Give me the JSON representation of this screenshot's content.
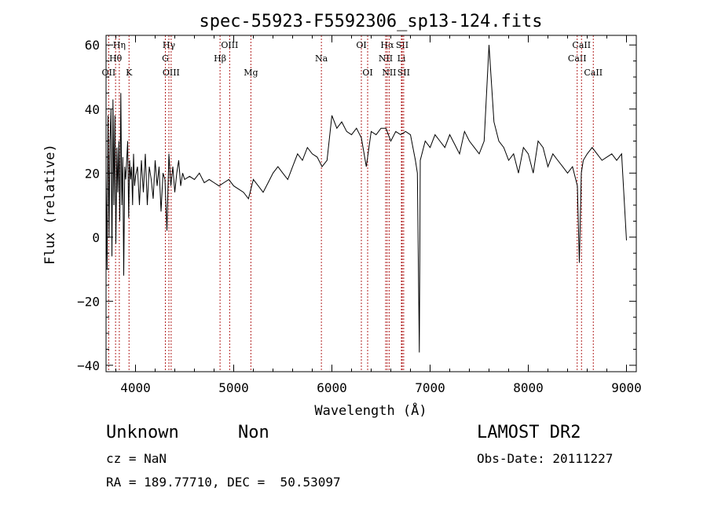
{
  "chart_data": {
    "type": "line",
    "title": "spec-55923-F5592306_sp13-124.fits",
    "xlabel": "Wavelength (Å)",
    "ylabel": "Flux (relative)",
    "xlim": [
      3700,
      9100
    ],
    "ylim": [
      -42,
      63
    ],
    "x_ticks": [
      4000,
      5000,
      6000,
      7000,
      8000,
      9000
    ],
    "y_ticks": [
      -40,
      -20,
      0,
      20,
      40,
      60
    ],
    "grid": false,
    "line_color": "#000000",
    "marker_color": "#b22222",
    "series": [
      {
        "x": [
          3700,
          3710,
          3720,
          3730,
          3740,
          3750,
          3760,
          3770,
          3780,
          3790,
          3800,
          3810,
          3820,
          3830,
          3840,
          3850,
          3860,
          3870,
          3880,
          3890,
          3900,
          3910,
          3920,
          3930,
          3940,
          3950,
          3960,
          3970,
          3980,
          3990,
          4000,
          4020,
          4040,
          4060,
          4080,
          4100,
          4120,
          4140,
          4160,
          4180,
          4200,
          4220,
          4240,
          4260,
          4280,
          4300,
          4320,
          4340,
          4360,
          4380,
          4400,
          4420,
          4440,
          4460,
          4480,
          4500,
          4550,
          4600,
          4650,
          4700,
          4750,
          4800,
          4850,
          4900,
          4950,
          5000,
          5050,
          5100,
          5150,
          5200,
          5250,
          5300,
          5350,
          5400,
          5450,
          5500,
          5550,
          5600,
          5650,
          5700,
          5750,
          5800,
          5850,
          5900,
          5950,
          6000,
          6050,
          6100,
          6150,
          6200,
          6250,
          6300,
          6350,
          6400,
          6450,
          6500,
          6550,
          6600,
          6650,
          6700,
          6750,
          6800,
          6850,
          6870,
          6890,
          6900,
          6950,
          7000,
          7050,
          7100,
          7150,
          7200,
          7250,
          7300,
          7350,
          7400,
          7450,
          7500,
          7550,
          7600,
          7650,
          7700,
          7750,
          7800,
          7850,
          7900,
          7950,
          8000,
          8050,
          8100,
          8150,
          8200,
          8250,
          8300,
          8350,
          8400,
          8450,
          8500,
          8520,
          8540,
          8560,
          8600,
          8650,
          8700,
          8750,
          8800,
          8850,
          8900,
          8950,
          9000
        ],
        "y": [
          20,
          -10,
          38,
          0,
          30,
          40,
          -6,
          43,
          10,
          38,
          -2,
          28,
          14,
          30,
          5,
          45,
          10,
          25,
          -12,
          22,
          18,
          24,
          30,
          6,
          24,
          18,
          22,
          10,
          26,
          16,
          19,
          22,
          10,
          24,
          14,
          26,
          10,
          22,
          18,
          12,
          24,
          16,
          22,
          8,
          20,
          18,
          2,
          26,
          16,
          22,
          14,
          20,
          24,
          16,
          20,
          18,
          19,
          18,
          20,
          17,
          18,
          17,
          16,
          17,
          18,
          16,
          15,
          14,
          12,
          18,
          16,
          14,
          17,
          20,
          22,
          20,
          18,
          22,
          26,
          24,
          28,
          26,
          25,
          22,
          24,
          38,
          34,
          36,
          33,
          32,
          34,
          31,
          22,
          33,
          32,
          34,
          34,
          30,
          33,
          32,
          33,
          32,
          24,
          20,
          -36,
          24,
          30,
          28,
          32,
          30,
          28,
          32,
          29,
          26,
          33,
          30,
          28,
          26,
          30,
          60,
          36,
          30,
          28,
          24,
          26,
          20,
          28,
          26,
          20,
          30,
          28,
          22,
          26,
          24,
          22,
          20,
          22,
          16,
          -8,
          20,
          24,
          26,
          28,
          26,
          24,
          25,
          26,
          24,
          26,
          -1
        ]
      }
    ],
    "line_markers": [
      {
        "name": "OII",
        "x": 3727,
        "row": 3
      },
      {
        "name": "Hθ",
        "x": 3797,
        "row": 2
      },
      {
        "name": "Hη",
        "x": 3835,
        "row": 1
      },
      {
        "name": "K",
        "x": 3934,
        "row": 3
      },
      {
        "name": "Hγ",
        "x": 4340,
        "row": 1
      },
      {
        "name": "G",
        "x": 4304,
        "row": 2
      },
      {
        "name": "OIII",
        "x": 4363,
        "row": 3
      },
      {
        "name": "Hβ",
        "x": 4861,
        "row": 2
      },
      {
        "name": "OIII",
        "x": 4959,
        "row": 1
      },
      {
        "name": "Mg",
        "x": 5175,
        "row": 3
      },
      {
        "name": "Na",
        "x": 5893,
        "row": 2
      },
      {
        "name": "OI",
        "x": 6300,
        "row": 1
      },
      {
        "name": "OI",
        "x": 6364,
        "row": 3
      },
      {
        "name": "Hα",
        "x": 6563,
        "row": 1
      },
      {
        "name": "NII",
        "x": 6548,
        "row": 2
      },
      {
        "name": "NII",
        "x": 6583,
        "row": 3
      },
      {
        "name": "SII",
        "x": 6716,
        "row": 1
      },
      {
        "name": "Li",
        "x": 6708,
        "row": 2
      },
      {
        "name": "SII",
        "x": 6731,
        "row": 3
      },
      {
        "name": "CaII",
        "x": 8498,
        "row": 2
      },
      {
        "name": "CaII",
        "x": 8542,
        "row": 1
      },
      {
        "name": "CaII",
        "x": 8662,
        "row": 3
      }
    ]
  },
  "info": {
    "class": "Unknown",
    "subclass": "Non",
    "survey": "LAMOST DR2",
    "cz": "cz = NaN",
    "obs_date": "Obs-Date: 20111227",
    "coords": "RA = 189.77710, DEC =  50.53097"
  }
}
